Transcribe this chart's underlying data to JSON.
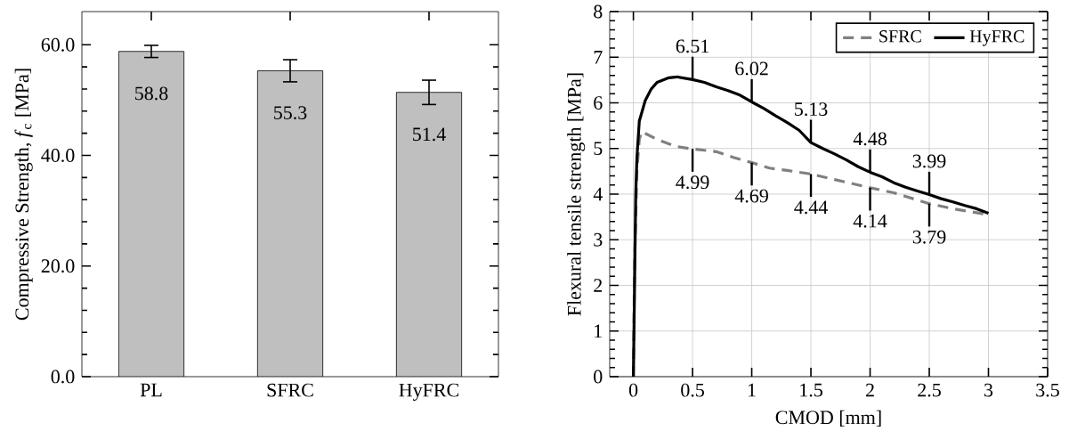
{
  "chart_data": [
    {
      "type": "bar",
      "categories": [
        "PL",
        "SFRC",
        "HyFRC"
      ],
      "values": [
        58.8,
        55.3,
        51.4
      ],
      "errors": [
        1.1,
        2.0,
        2.2
      ],
      "color": "#bfbfbf",
      "data_labels": true,
      "ylabel": "Compressive Strength, *f*$_{c}$ [MPa]",
      "ylim": [
        0,
        66
      ],
      "yticks": [
        {
          "value": 0,
          "label": "0.0"
        },
        {
          "value": 20,
          "label": "20.0"
        },
        {
          "value": 40,
          "label": "40.0"
        },
        {
          "value": 60,
          "label": "60.0"
        }
      ],
      "grid": false
    },
    {
      "type": "line",
      "xlabel": "CMOD [mm]",
      "ylabel": "Flexural tensile strength [MPa]",
      "xlim": [
        -0.2,
        3.5
      ],
      "ylim": [
        0,
        8
      ],
      "xticks": [
        0,
        0.5,
        1,
        1.5,
        2,
        2.5,
        3,
        3.5
      ],
      "yticks": [
        0,
        1,
        2,
        3,
        4,
        5,
        6,
        7,
        8
      ],
      "grid": true,
      "legend": "top right",
      "series": [
        {
          "name": "SFRC",
          "color": "#808080",
          "line_style": "dashed",
          "x": [
            0,
            0.01,
            0.03,
            0.05,
            0.07,
            0.2,
            0.35,
            0.5,
            0.7,
            0.85,
            1,
            1.15,
            1.3,
            1.5,
            1.7,
            2,
            2.2,
            2.5,
            2.7,
            3.0
          ],
          "values": [
            0,
            2.5,
            4.5,
            5.2,
            5.37,
            5.2,
            5.05,
            4.99,
            4.93,
            4.8,
            4.69,
            4.57,
            4.52,
            4.44,
            4.32,
            4.14,
            4.03,
            3.79,
            3.68,
            3.55
          ]
        },
        {
          "name": "HyFRC",
          "color": "#000000",
          "line_style": "solid",
          "x": [
            0,
            0.01,
            0.02,
            0.03,
            0.05,
            0.1,
            0.15,
            0.2,
            0.3,
            0.37,
            0.5,
            0.6,
            0.7,
            0.8,
            0.9,
            1,
            1.1,
            1.2,
            1.3,
            1.4,
            1.5,
            1.6,
            1.7,
            1.8,
            1.9,
            2,
            2.1,
            2.2,
            2.3,
            2.4,
            2.5,
            2.6,
            2.7,
            2.8,
            2.9,
            3.0
          ],
          "values": [
            0,
            2,
            4,
            4.8,
            5.6,
            6.05,
            6.3,
            6.45,
            6.55,
            6.57,
            6.51,
            6.45,
            6.35,
            6.27,
            6.17,
            6.02,
            5.88,
            5.72,
            5.57,
            5.4,
            5.13,
            5.0,
            4.88,
            4.75,
            4.6,
            4.48,
            4.38,
            4.25,
            4.15,
            4.07,
            3.99,
            3.9,
            3.83,
            3.75,
            3.68,
            3.58
          ]
        }
      ],
      "annotations": [
        {
          "text": "6.51",
          "x": 0.5,
          "y": 6.51
        },
        {
          "text": "6.02",
          "x": 1,
          "y": 6.02
        },
        {
          "text": "5.13",
          "x": 1.5,
          "y": 5.13
        },
        {
          "text": "4.48",
          "x": 2,
          "y": 4.48
        },
        {
          "text": "3.99",
          "x": 2.5,
          "y": 3.99
        },
        {
          "text": "4.99",
          "x": 0.5,
          "y": 4.99
        },
        {
          "text": "4.69",
          "x": 1,
          "y": 4.69
        },
        {
          "text": "4.44",
          "x": 1.5,
          "y": 4.44
        },
        {
          "text": "4.14",
          "x": 2,
          "y": 4.14
        },
        {
          "text": "3.79",
          "x": 2.5,
          "y": 3.79
        }
      ]
    }
  ]
}
